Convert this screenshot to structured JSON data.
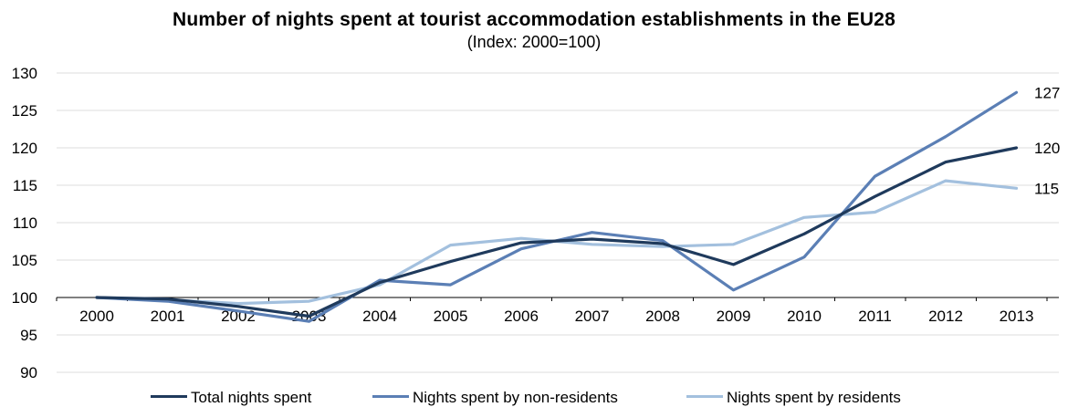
{
  "chart_data": {
    "type": "line",
    "title": "Number of nights spent at tourist accommodation establishments in the EU28",
    "subtitle": "(Index: 2000=100)",
    "xlabel": "",
    "ylabel": "",
    "ylim": [
      90,
      130
    ],
    "yticks": [
      "90",
      "95",
      "100",
      "105",
      "110",
      "115",
      "120",
      "125",
      "130"
    ],
    "categories": [
      "2000",
      "2001",
      "2002",
      "2003",
      "2004",
      "2005",
      "2006",
      "2007",
      "2008",
      "2009",
      "2010",
      "2011",
      "2012",
      "2013"
    ],
    "grid": true,
    "legend_position": "bottom",
    "series": [
      {
        "name": "Total nights spent",
        "color": "#1f3a5c",
        "values": [
          100,
          99.8,
          98.8,
          97.5,
          102.0,
          104.8,
          107.3,
          107.8,
          107.2,
          104.4,
          108.5,
          113.5,
          118.1,
          120.0
        ]
      },
      {
        "name": "Nights spent by non-residents",
        "color": "#5b7fb5",
        "values": [
          100,
          99.5,
          98.2,
          96.8,
          102.3,
          101.7,
          106.5,
          108.7,
          107.6,
          101.0,
          105.4,
          116.2,
          121.5,
          127.4
        ]
      },
      {
        "name": "Nights spent by residents",
        "color": "#a3c0de",
        "values": [
          100,
          99.7,
          99.2,
          99.5,
          101.7,
          107.0,
          107.9,
          107.1,
          106.8,
          107.1,
          110.7,
          111.4,
          115.6,
          114.6
        ]
      }
    ],
    "end_labels": [
      "127",
      "120",
      "115"
    ]
  }
}
